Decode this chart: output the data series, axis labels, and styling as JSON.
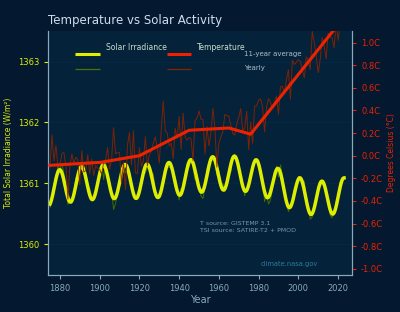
{
  "title": "Temperature vs Solar Activity",
  "xlabel": "Year",
  "ylabel_left": "Total Solar Irradiance (W/m²)",
  "ylabel_right": "Degrees Celsius (°C)",
  "bg_color": "#041830",
  "plot_bg_color": "#04223a",
  "title_color": "#ccddee",
  "axis_color": "#88aabb",
  "grid_color": "#0d3355",
  "source_text": "T source: GISTEMP 3.1\nTSI source: SATIRE-T2 + PMOD",
  "watermark": "climate.nasa.gov",
  "xlim": [
    1874,
    2027
  ],
  "ylim_left": [
    1359.5,
    1363.5
  ],
  "ylim_right": [
    -1.05,
    1.1
  ],
  "yticks_left": [
    1360,
    1361,
    1362,
    1363
  ],
  "yticks_right": [
    -1.0,
    -0.8,
    -0.6,
    -0.4,
    -0.2,
    0.0,
    0.2,
    0.4,
    0.6,
    0.8,
    1.0
  ],
  "xticks": [
    1880,
    1900,
    1920,
    1940,
    1960,
    1980,
    2000,
    2020
  ],
  "tsi_color_smooth": "#ddee00",
  "tsi_color_yearly": "#447700",
  "temp_color_smooth": "#ee2200",
  "temp_color_yearly": "#882200",
  "legend_solar_label": "Solar Irradiance",
  "legend_temp_label": "Temperature",
  "legend_11yr_label": "11-year average",
  "legend_yearly_label": "Yearly"
}
